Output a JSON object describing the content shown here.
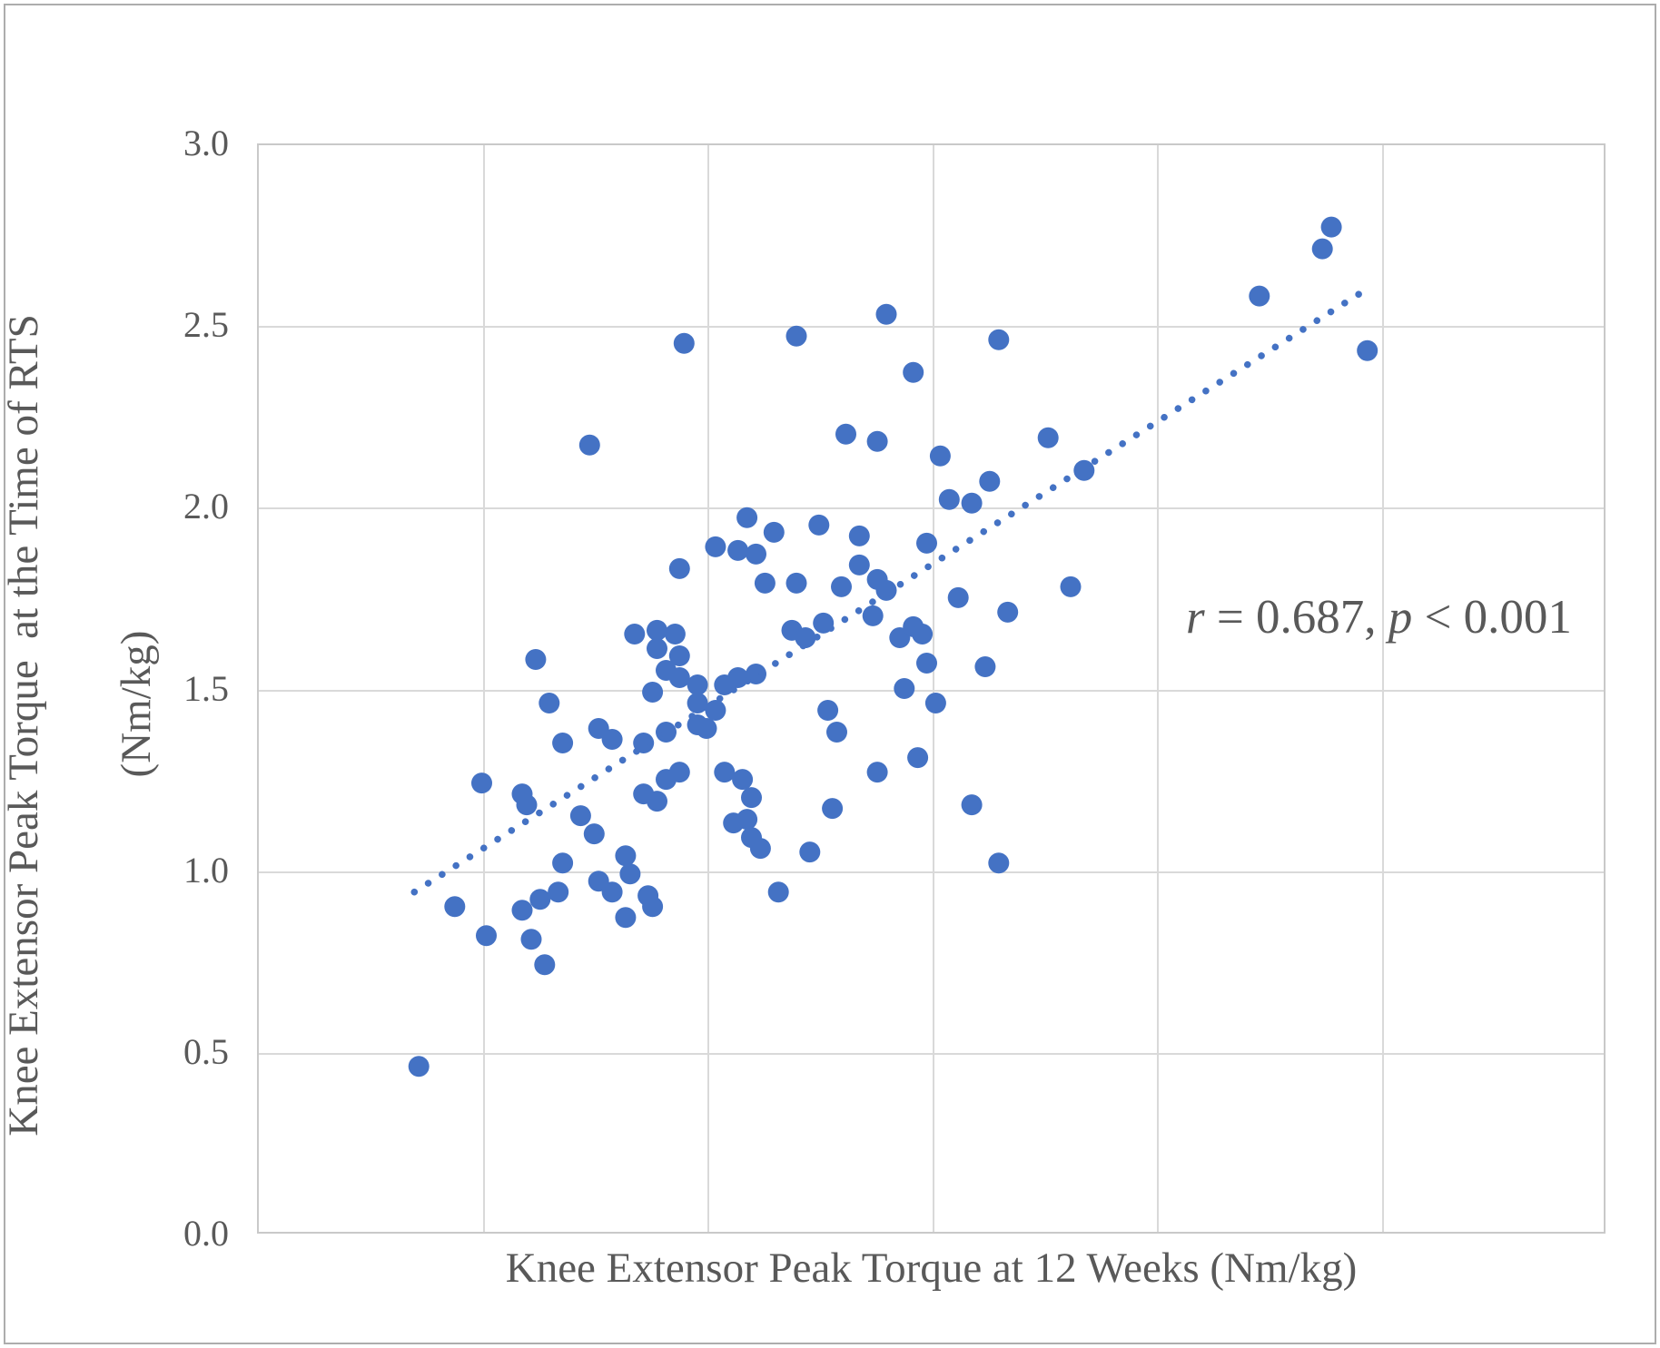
{
  "figure": {
    "x_axis_title": "Knee Extensor Peak Torque at 12 Weeks (Nm/kg)",
    "y_axis_title_line1": "Knee Extensor Peak Torque  at the Time of RTS",
    "y_axis_title_line2": "(Nm/kg)",
    "annotation": {
      "r_var": "r",
      "r_rest": " = 0.687, ",
      "p_var": "p",
      "p_rest": " < 0.001"
    }
  },
  "chart_data": {
    "type": "scatter",
    "title": "",
    "xlabel": "Knee Extensor Peak Torque at 12 Weeks (Nm/kg)",
    "ylabel": "Knee Extensor Peak Torque  at the Time of RTS (Nm/kg)",
    "annotation_text": "r = 0.687, p < 0.001",
    "correlation": {
      "r": 0.687,
      "p": "< 0.001"
    },
    "grid": true,
    "legend": "none",
    "point_color": "#4472c4",
    "trend_color": "#4472c4",
    "gridline_color": "#d9d9d9",
    "text_color": "#595959",
    "x_axis": {
      "min": 0.0,
      "max": 3.0,
      "gridline_step": 0.5,
      "tick_labels": []
    },
    "y_axis": {
      "min": 0.0,
      "max": 3.0,
      "gridline_step": 0.5,
      "tick_labels": [
        "0.0",
        "0.5",
        "1.0",
        "1.5",
        "2.0",
        "2.5",
        "3.0"
      ]
    },
    "trendline": {
      "style": "dotted",
      "x1": 0.35,
      "y1": 0.94,
      "x2": 2.47,
      "y2": 2.6
    },
    "points": [
      [
        0.36,
        0.46
      ],
      [
        0.44,
        0.9
      ],
      [
        0.5,
        1.24
      ],
      [
        0.51,
        0.82
      ],
      [
        0.59,
        0.89
      ],
      [
        0.59,
        1.21
      ],
      [
        0.6,
        1.18
      ],
      [
        0.61,
        0.81
      ],
      [
        0.62,
        1.58
      ],
      [
        0.63,
        0.92
      ],
      [
        0.64,
        0.74
      ],
      [
        0.65,
        1.46
      ],
      [
        0.67,
        0.94
      ],
      [
        0.68,
        1.02
      ],
      [
        0.68,
        1.35
      ],
      [
        0.72,
        1.15
      ],
      [
        0.74,
        2.17
      ],
      [
        0.75,
        1.1
      ],
      [
        0.76,
        0.97
      ],
      [
        0.76,
        1.39
      ],
      [
        0.79,
        0.94
      ],
      [
        0.79,
        1.36
      ],
      [
        0.82,
        0.87
      ],
      [
        0.82,
        1.04
      ],
      [
        0.83,
        0.99
      ],
      [
        0.84,
        1.65
      ],
      [
        0.86,
        1.21
      ],
      [
        0.86,
        1.35
      ],
      [
        0.87,
        0.93
      ],
      [
        0.88,
        0.9
      ],
      [
        0.88,
        1.49
      ],
      [
        0.89,
        1.19
      ],
      [
        0.89,
        1.61
      ],
      [
        0.89,
        1.66
      ],
      [
        0.91,
        1.25
      ],
      [
        0.91,
        1.38
      ],
      [
        0.91,
        1.55
      ],
      [
        0.93,
        1.65
      ],
      [
        0.94,
        1.27
      ],
      [
        0.94,
        1.53
      ],
      [
        0.94,
        1.59
      ],
      [
        0.94,
        1.83
      ],
      [
        0.95,
        2.45
      ],
      [
        0.98,
        1.4
      ],
      [
        0.98,
        1.46
      ],
      [
        0.98,
        1.51
      ],
      [
        1.0,
        1.39
      ],
      [
        1.02,
        1.44
      ],
      [
        1.02,
        1.89
      ],
      [
        1.04,
        1.27
      ],
      [
        1.04,
        1.51
      ],
      [
        1.06,
        1.13
      ],
      [
        1.07,
        1.53
      ],
      [
        1.07,
        1.88
      ],
      [
        1.08,
        1.25
      ],
      [
        1.09,
        1.14
      ],
      [
        1.09,
        1.97
      ],
      [
        1.1,
        1.09
      ],
      [
        1.1,
        1.2
      ],
      [
        1.11,
        1.54
      ],
      [
        1.11,
        1.87
      ],
      [
        1.12,
        1.06
      ],
      [
        1.13,
        1.79
      ],
      [
        1.15,
        1.93
      ],
      [
        1.16,
        0.94
      ],
      [
        1.19,
        1.66
      ],
      [
        1.2,
        1.79
      ],
      [
        1.2,
        2.47
      ],
      [
        1.22,
        1.64
      ],
      [
        1.23,
        1.05
      ],
      [
        1.25,
        1.95
      ],
      [
        1.26,
        1.68
      ],
      [
        1.27,
        1.44
      ],
      [
        1.28,
        1.17
      ],
      [
        1.29,
        1.38
      ],
      [
        1.3,
        1.78
      ],
      [
        1.31,
        2.2
      ],
      [
        1.34,
        1.84
      ],
      [
        1.34,
        1.92
      ],
      [
        1.37,
        1.7
      ],
      [
        1.38,
        1.27
      ],
      [
        1.38,
        1.8
      ],
      [
        1.38,
        2.18
      ],
      [
        1.4,
        1.77
      ],
      [
        1.4,
        2.53
      ],
      [
        1.43,
        1.64
      ],
      [
        1.44,
        1.5
      ],
      [
        1.46,
        1.67
      ],
      [
        1.46,
        2.37
      ],
      [
        1.47,
        1.31
      ],
      [
        1.48,
        1.65
      ],
      [
        1.49,
        1.57
      ],
      [
        1.49,
        1.9
      ],
      [
        1.51,
        1.46
      ],
      [
        1.52,
        2.14
      ],
      [
        1.54,
        2.02
      ],
      [
        1.56,
        1.75
      ],
      [
        1.59,
        1.18
      ],
      [
        1.59,
        2.01
      ],
      [
        1.62,
        1.56
      ],
      [
        1.63,
        2.07
      ],
      [
        1.65,
        1.02
      ],
      [
        1.65,
        2.46
      ],
      [
        1.67,
        1.71
      ],
      [
        1.76,
        2.19
      ],
      [
        1.81,
        1.78
      ],
      [
        1.84,
        2.1
      ],
      [
        2.23,
        2.58
      ],
      [
        2.37,
        2.71
      ],
      [
        2.39,
        2.77
      ],
      [
        2.47,
        2.43
      ]
    ]
  }
}
